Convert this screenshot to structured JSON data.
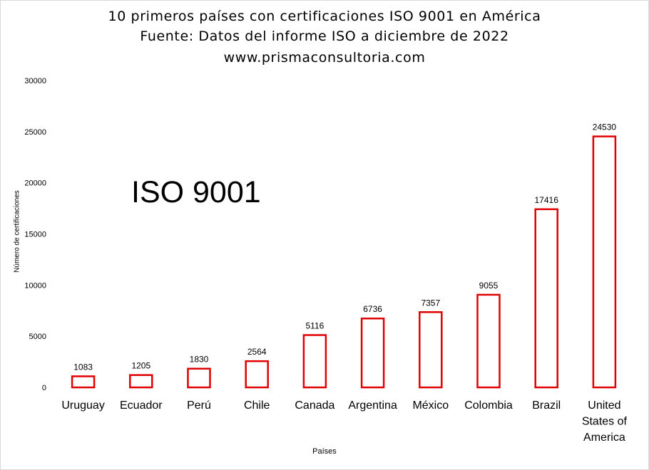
{
  "chart_data": {
    "type": "bar",
    "title": "10 primeros países con certificaciones ISO 9001 en América",
    "subtitle": "Fuente: Datos del informe ISO  a diciembre de 2022",
    "source_url": "www.prismaconsultoria.com",
    "annotation": "ISO 9001",
    "xlabel": "Países",
    "ylabel": "Número de certificaciones",
    "ylim": [
      0,
      30000
    ],
    "yticks": [
      0,
      5000,
      10000,
      15000,
      20000,
      25000,
      30000
    ],
    "categories": [
      "Uruguay",
      "Ecuador",
      "Perú",
      "Chile",
      "Canada",
      "Argentina",
      "México",
      "Colombia",
      "Brazil",
      "United States of America"
    ],
    "values": [
      1083,
      1205,
      1830,
      2564,
      5116,
      6736,
      7357,
      9055,
      17416,
      24530
    ],
    "grid": false,
    "legend": "none",
    "bar_fill": "#ffffff",
    "bar_stroke": "#e00000"
  }
}
